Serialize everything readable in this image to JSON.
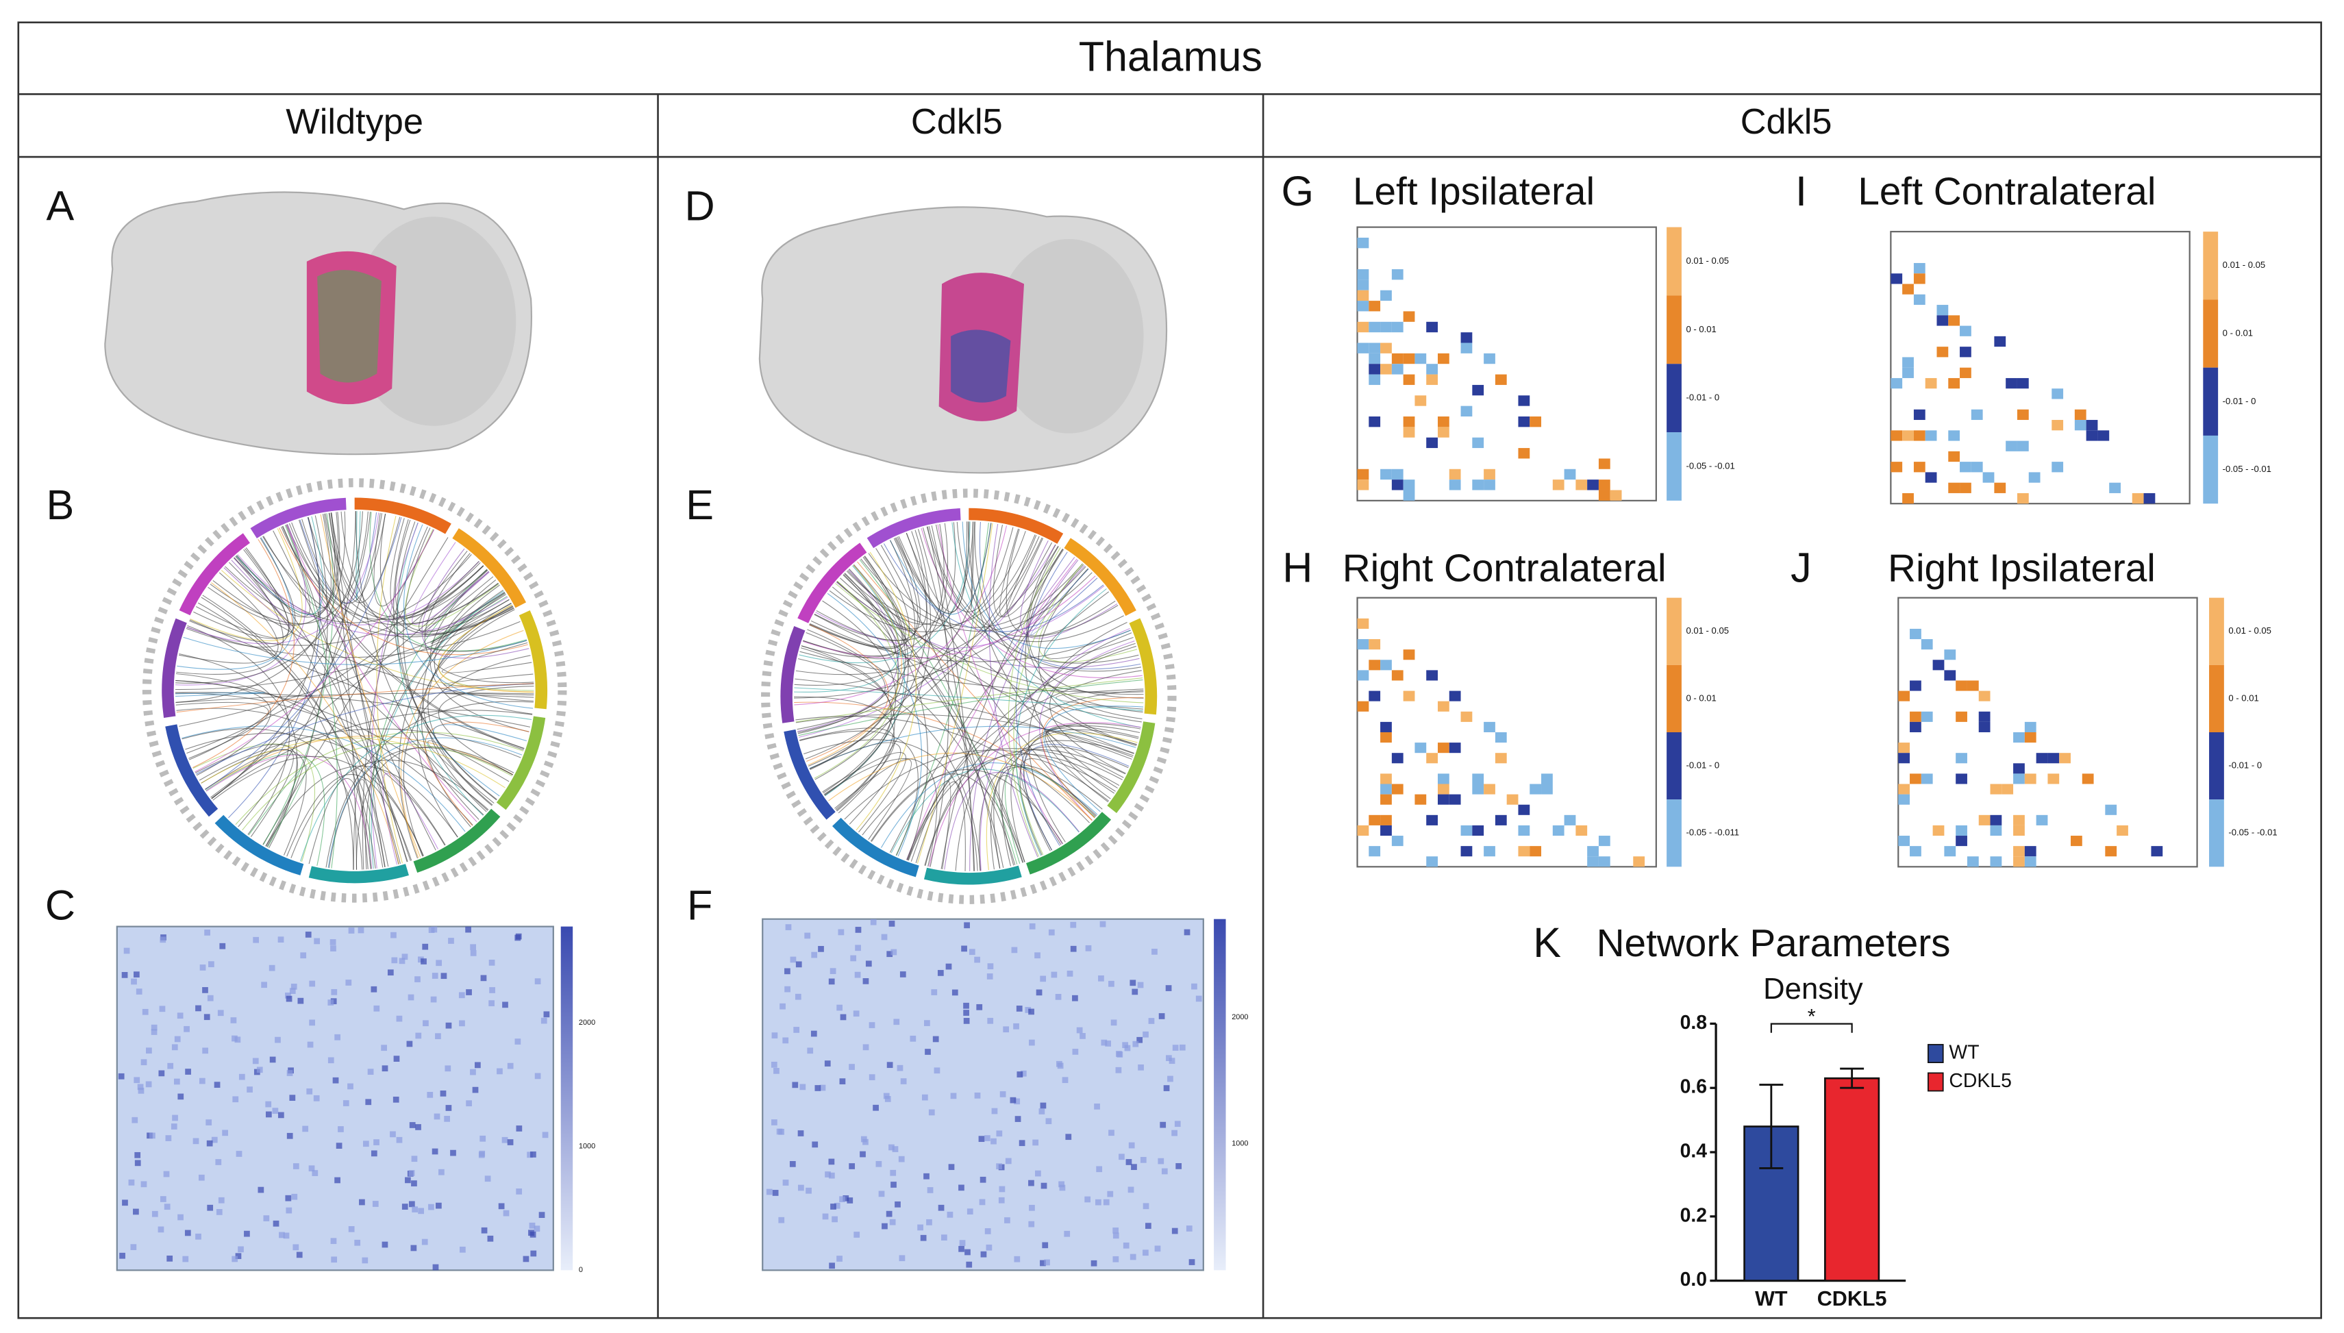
{
  "header": {
    "title": "Thalamus",
    "columns": [
      "Wildtype",
      "Cdkl5",
      "Cdkl5"
    ]
  },
  "panels": [
    {
      "letter": "A"
    },
    {
      "letter": "B"
    },
    {
      "letter": "C",
      "colorbar": [
        "2000",
        "1000",
        "0"
      ]
    },
    {
      "letter": "D"
    },
    {
      "letter": "E"
    },
    {
      "letter": "F",
      "colorbar": [
        "2000",
        "1000"
      ]
    },
    {
      "letter": "G",
      "title": "Left Ipsilateral",
      "colorbar": [
        "0.01 - 0.05",
        "0 - 0.01",
        "-0.01 - 0",
        "-0.05 - -0.01"
      ]
    },
    {
      "letter": "I",
      "title": "Left Contralateral",
      "colorbar": [
        "0.01 - 0.05",
        "0 - 0.01",
        "-0.01 - 0",
        "-0.05 - -0.01"
      ]
    },
    {
      "letter": "H",
      "title": "Right Contralateral",
      "colorbar": [
        "0.01 - 0.05",
        "0 - 0.01",
        "-0.01 - 0",
        "-0.05 - -0.011"
      ]
    },
    {
      "letter": "J",
      "title": "Right Ipsilateral",
      "colorbar": [
        "0.01 - 0.05",
        "0 - 0.01",
        "-0.01 - 0",
        "-0.05 - -0.01"
      ]
    },
    {
      "letter": "K"
    }
  ],
  "chart_data": {
    "type": "bar",
    "title": "Network Parameters",
    "subtitle": "Density",
    "categories": [
      "WT",
      "CDKL5"
    ],
    "values": [
      0.48,
      0.63
    ],
    "errors": [
      0.13,
      0.03
    ],
    "colors": [
      "#2e4a9e",
      "#e8262e"
    ],
    "annotation": "*",
    "legend": "right",
    "ylim": [
      0,
      0.8
    ],
    "yticks": [
      {
        "value": 0,
        "label": "0.0"
      },
      {
        "value": 0.2,
        "label": "0.2"
      },
      {
        "value": 0.4,
        "label": "0.4"
      },
      {
        "value": 0.6,
        "label": "0.6"
      },
      {
        "value": 0.8,
        "label": "0.8"
      }
    ]
  }
}
